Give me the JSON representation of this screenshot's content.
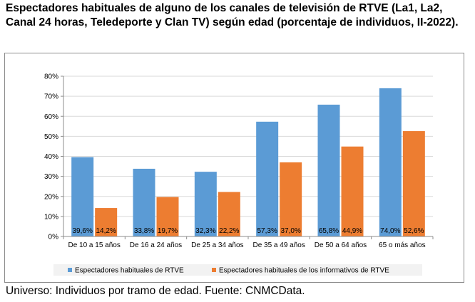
{
  "title": "Espectadores habituales de alguno de los canales de televisión de RTVE (La1, La2, Canal 24 horas, Teledeporte y Clan TV) según edad (porcentaje de individuos, II-2022).",
  "footnote": "Universo: Individuos por tramo de edad. Fuente: CNMCData.",
  "chart_data": {
    "type": "bar",
    "categories": [
      "De 10 a 15 años",
      "De 16 a 24 años",
      "De 25 a 34 años",
      "De 35 a 49 años",
      "De 50 a 64 años",
      "65 o más años"
    ],
    "series": [
      {
        "name": "Espectadores habituales de RTVE",
        "color": "#5b9bd5",
        "values": [
          39.6,
          33.8,
          32.3,
          57.3,
          65.8,
          74.0
        ],
        "labels": [
          "39,6%",
          "33,8%",
          "32,3%",
          "57,3%",
          "65,8%",
          "74,0%"
        ]
      },
      {
        "name": "Espectadores habituales de los informativos de RTVE",
        "color": "#ed7d31",
        "values": [
          14.2,
          19.7,
          22.2,
          37.0,
          44.9,
          52.6
        ],
        "labels": [
          "14,2%",
          "19,7%",
          "22,2%",
          "37,0%",
          "44,9%",
          "52,6%"
        ]
      }
    ],
    "yticks": [
      "0%",
      "10%",
      "20%",
      "30%",
      "40%",
      "50%",
      "60%",
      "70%",
      "80%"
    ],
    "ylim": [
      0,
      80
    ],
    "grid": true,
    "legend": "bottom"
  }
}
